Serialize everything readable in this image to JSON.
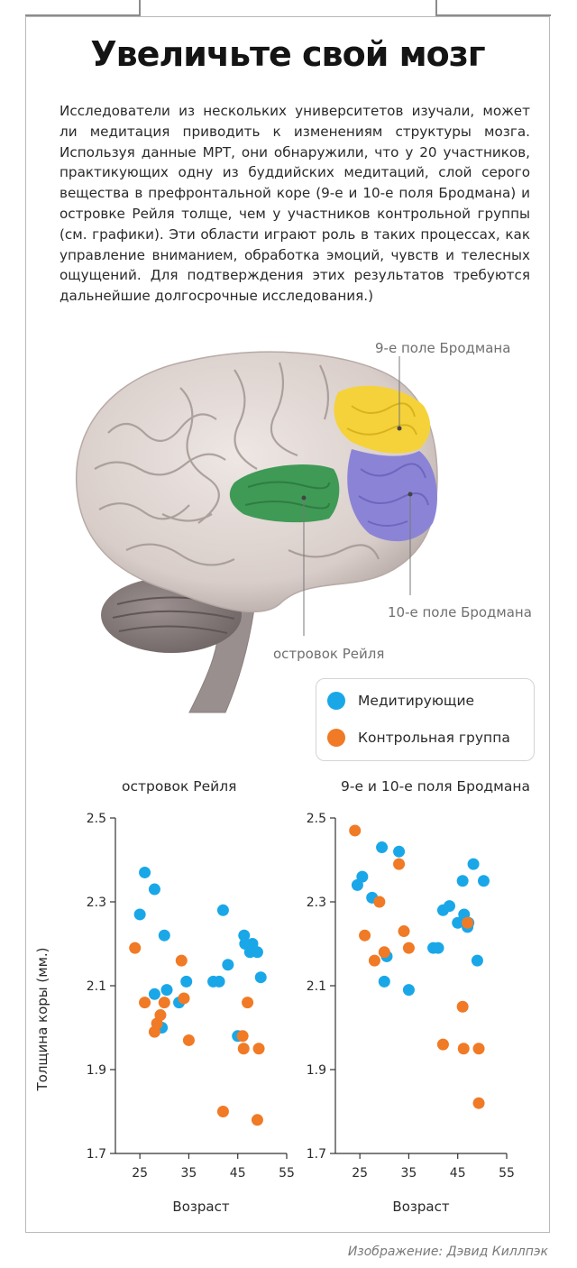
{
  "title": "Увеличьте свой мозг",
  "intro": "Исследователи из нескольких университетов изучали, может ли медитация приводить к изменениям структуры мозга. Используя данные МРТ, они обнаружили, что у 20 участников, практикующих одну из буддийских медитаций, слой серого вещества в префронтальной коре (9-е и 10-е поля Бродмана) и островке Рейля толще, чем у участников контрольной группы (см. графики). Эти области играют роль в таких процессах, как управление вниманием, обработка эмоций, чувств и телесных ощущений. Для подтверждения этих результатов требуются дальнейшие долгосрочные исследования.)",
  "brain_labels": {
    "area9": "9-е поле Бродмана",
    "area10": "10-е поле Бродмана",
    "insula": "островок Рейля"
  },
  "legend": {
    "meditators": "Медитирующие",
    "control": "Контрольная группа"
  },
  "colors": {
    "meditators": "#1aa7e8",
    "control": "#f07a25",
    "area9": "#f5d23a",
    "area10": "#8b84d6",
    "insula": "#3f9a56",
    "cortex": "#d9cfcb"
  },
  "credit": "Изображение: Дэвид Киллпэк",
  "chart_data": [
    {
      "type": "scatter",
      "title": "островок Рейля",
      "xlabel": "Возраст",
      "ylabel": "Толщина коры (мм.)",
      "xlim": [
        20,
        55
      ],
      "ylim": [
        1.7,
        2.5
      ],
      "xticks": [
        "25",
        "35",
        "45",
        "55"
      ],
      "yticks": [
        "2.5",
        "2.3",
        "2.1",
        "1.9",
        "1.7"
      ],
      "series": [
        {
          "name": "Медитирующие",
          "points": [
            [
              25,
              2.27
            ],
            [
              26,
              2.37
            ],
            [
              28,
              2.33
            ],
            [
              28,
              2.08
            ],
            [
              29.5,
              2.0
            ],
            [
              30,
              2.22
            ],
            [
              30.5,
              2.09
            ],
            [
              33,
              2.06
            ],
            [
              34.5,
              2.11
            ],
            [
              40,
              2.11
            ],
            [
              41.2,
              2.11
            ],
            [
              42,
              2.28
            ],
            [
              43,
              2.15
            ],
            [
              45,
              1.98
            ],
            [
              46.3,
              2.22
            ],
            [
              46.5,
              2.2
            ],
            [
              47.5,
              2.18
            ],
            [
              48,
              2.2
            ],
            [
              49,
              2.18
            ],
            [
              49.7,
              2.12
            ]
          ]
        },
        {
          "name": "Контрольная группа",
          "points": [
            [
              24,
              2.19
            ],
            [
              26,
              2.06
            ],
            [
              28,
              1.99
            ],
            [
              28.5,
              2.01
            ],
            [
              29.2,
              2.03
            ],
            [
              30,
              2.06
            ],
            [
              33.5,
              2.16
            ],
            [
              34,
              2.07
            ],
            [
              35,
              1.97
            ],
            [
              42,
              1.8
            ],
            [
              46,
              1.98
            ],
            [
              46.2,
              1.95
            ],
            [
              47,
              2.06
            ],
            [
              49,
              1.78
            ],
            [
              49.3,
              1.95
            ]
          ]
        }
      ]
    },
    {
      "type": "scatter",
      "title": "9-е и 10-е поля Бродмана",
      "xlabel": "Возраст",
      "ylabel": "",
      "xlim": [
        20,
        55
      ],
      "ylim": [
        1.7,
        2.5
      ],
      "xticks": [
        "25",
        "35",
        "45",
        "55"
      ],
      "yticks": [
        "2.5",
        "2.3",
        "2.1",
        "1.9",
        "1.7"
      ],
      "series": [
        {
          "name": "Медитирующие",
          "points": [
            [
              24.5,
              2.34
            ],
            [
              25.5,
              2.36
            ],
            [
              27.5,
              2.31
            ],
            [
              29.5,
              2.43
            ],
            [
              30,
              2.11
            ],
            [
              30.5,
              2.17
            ],
            [
              33,
              2.42
            ],
            [
              35,
              2.09
            ],
            [
              40,
              2.19
            ],
            [
              41,
              2.19
            ],
            [
              42,
              2.28
            ],
            [
              43.3,
              2.29
            ],
            [
              45,
              2.25
            ],
            [
              46,
              2.35
            ],
            [
              46.3,
              2.27
            ],
            [
              47,
              2.24
            ],
            [
              48.2,
              2.39
            ],
            [
              49,
              2.16
            ],
            [
              50.3,
              2.35
            ],
            [
              47.2,
              2.25
            ]
          ]
        },
        {
          "name": "Контрольная группа",
          "points": [
            [
              24,
              2.47
            ],
            [
              26,
              2.22
            ],
            [
              28,
              2.16
            ],
            [
              29,
              2.3
            ],
            [
              30,
              2.18
            ],
            [
              33,
              2.39
            ],
            [
              34,
              2.23
            ],
            [
              35,
              2.19
            ],
            [
              42,
              1.96
            ],
            [
              46,
              2.05
            ],
            [
              46.2,
              1.95
            ],
            [
              47,
              2.25
            ],
            [
              49.3,
              1.95
            ],
            [
              49.3,
              1.82
            ]
          ]
        }
      ]
    }
  ]
}
